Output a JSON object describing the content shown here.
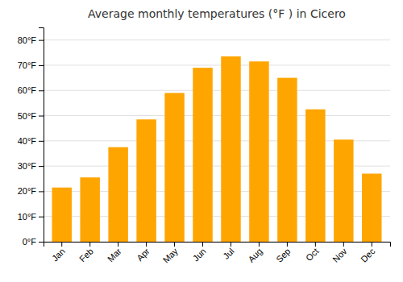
{
  "chart_data": {
    "type": "bar",
    "title": "Average monthly temperatures (°F ) in Cicero",
    "categories": [
      "Jan",
      "Feb",
      "Mar",
      "Apr",
      "May",
      "Jun",
      "Jul",
      "Aug",
      "Sep",
      "Oct",
      "Nov",
      "Dec"
    ],
    "values": [
      21.5,
      25.5,
      37.5,
      48.5,
      59.0,
      69.0,
      73.5,
      71.5,
      65.0,
      52.5,
      40.5,
      27.0
    ],
    "color": "#FFA500",
    "ylim": [
      0,
      85
    ],
    "yticks": [
      {
        "value": 0,
        "label": "0°F"
      },
      {
        "value": 10,
        "label": "10°F"
      },
      {
        "value": 20,
        "label": "20°F"
      },
      {
        "value": 30,
        "label": "30°F"
      },
      {
        "value": 40,
        "label": "40°F"
      },
      {
        "value": 50,
        "label": "50°F"
      },
      {
        "value": 60,
        "label": "60°F"
      },
      {
        "value": 70,
        "label": "70°F"
      },
      {
        "value": 80,
        "label": "80°F"
      }
    ],
    "grid": true
  }
}
